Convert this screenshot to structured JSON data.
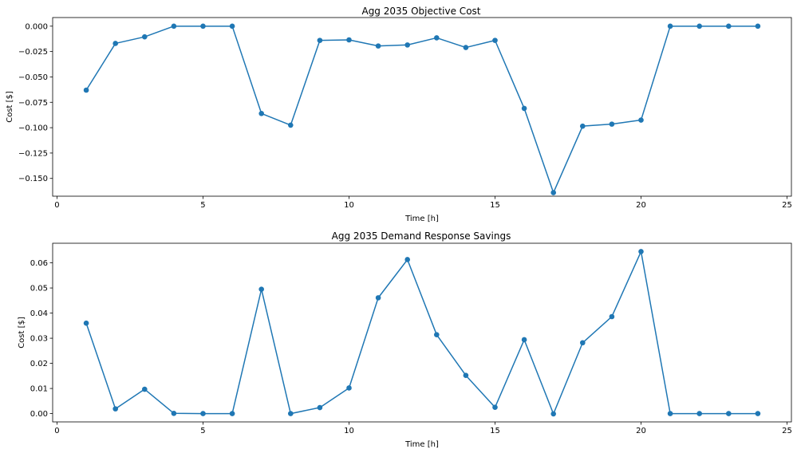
{
  "chart_data": [
    {
      "type": "line",
      "title": "Agg 2035 Objective Cost",
      "xlabel": "Time [h]",
      "ylabel": "Cost [$]",
      "xlim": [
        -0.15,
        25.15
      ],
      "ylim": [
        -0.1675,
        0.0085
      ],
      "xticks": [
        0,
        5,
        10,
        15,
        20,
        25
      ],
      "xtick_labels": [
        "0",
        "5",
        "10",
        "15",
        "20",
        "25"
      ],
      "yticks": [
        0.0,
        -0.025,
        -0.05,
        -0.075,
        -0.1,
        -0.125,
        -0.15
      ],
      "ytick_labels": [
        "0.000",
        "−0.025",
        "−0.050",
        "−0.075",
        "−0.100",
        "−0.125",
        "−0.150"
      ],
      "grid": false,
      "color": "#1f77b4",
      "marker": "circle",
      "x": [
        1,
        2,
        3,
        4,
        5,
        6,
        7,
        8,
        9,
        10,
        11,
        12,
        13,
        14,
        15,
        16,
        17,
        18,
        19,
        20,
        21,
        22,
        23,
        24
      ],
      "y": [
        -0.063,
        -0.017,
        -0.0105,
        0.0,
        0.0,
        0.0,
        -0.086,
        -0.0975,
        -0.014,
        -0.0135,
        -0.0195,
        -0.0185,
        -0.0115,
        -0.021,
        -0.014,
        -0.081,
        -0.164,
        -0.0985,
        -0.0965,
        -0.0925,
        0.0,
        0.0,
        0.0,
        0.0
      ]
    },
    {
      "type": "line",
      "title": "Agg 2035 Demand Response Savings",
      "xlabel": "Time [h]",
      "ylabel": "Cost [$]",
      "xlim": [
        -0.15,
        25.15
      ],
      "ylim": [
        -0.0033,
        0.0678
      ],
      "xticks": [
        0,
        5,
        10,
        15,
        20,
        25
      ],
      "xtick_labels": [
        "0",
        "5",
        "10",
        "15",
        "20",
        "25"
      ],
      "yticks": [
        0.0,
        0.01,
        0.02,
        0.03,
        0.04,
        0.05,
        0.06
      ],
      "ytick_labels": [
        "0.00",
        "0.01",
        "0.02",
        "0.03",
        "0.04",
        "0.05",
        "0.06"
      ],
      "grid": false,
      "color": "#1f77b4",
      "marker": "circle",
      "x": [
        1,
        2,
        3,
        4,
        5,
        6,
        7,
        8,
        9,
        10,
        11,
        12,
        13,
        14,
        15,
        16,
        17,
        18,
        19,
        20,
        21,
        22,
        23,
        24
      ],
      "y": [
        0.036,
        0.0019,
        0.0097,
        0.0001,
        0.0,
        0.0,
        0.0495,
        0.0,
        0.0024,
        0.0102,
        0.0461,
        0.0613,
        0.0314,
        0.0152,
        0.0025,
        0.0294,
        -0.0001,
        0.0282,
        0.0386,
        0.0645,
        0.0,
        0.0,
        0.0,
        0.0
      ]
    }
  ]
}
